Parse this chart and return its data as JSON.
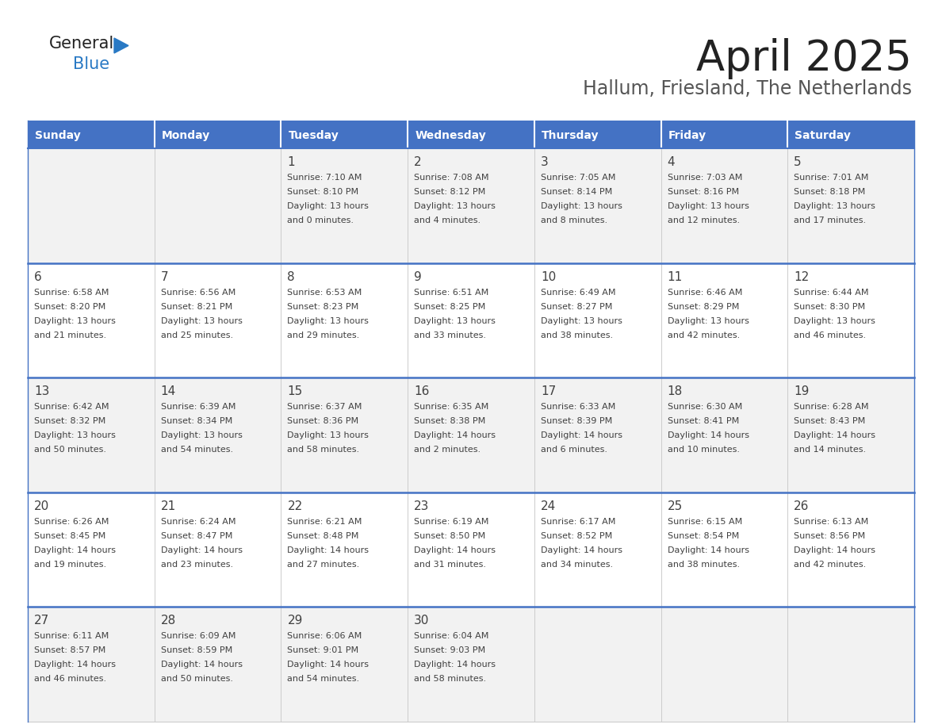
{
  "title": "April 2025",
  "subtitle": "Hallum, Friesland, The Netherlands",
  "days_of_week": [
    "Sunday",
    "Monday",
    "Tuesday",
    "Wednesday",
    "Thursday",
    "Friday",
    "Saturday"
  ],
  "header_bg": "#4472C4",
  "header_text": "#FFFFFF",
  "row_bg_odd": "#F2F2F2",
  "row_bg_even": "#FFFFFF",
  "border_color": "#3D5A8A",
  "separator_color": "#4472C4",
  "text_color": "#404040",
  "cell_border_color": "#CCCCCC",
  "calendar_data": [
    [
      {
        "day": "",
        "sunrise": "",
        "sunset": "",
        "daylight": ""
      },
      {
        "day": "",
        "sunrise": "",
        "sunset": "",
        "daylight": ""
      },
      {
        "day": "1",
        "sunrise": "7:10 AM",
        "sunset": "8:10 PM",
        "daylight": "13 hours and 0 minutes."
      },
      {
        "day": "2",
        "sunrise": "7:08 AM",
        "sunset": "8:12 PM",
        "daylight": "13 hours and 4 minutes."
      },
      {
        "day": "3",
        "sunrise": "7:05 AM",
        "sunset": "8:14 PM",
        "daylight": "13 hours and 8 minutes."
      },
      {
        "day": "4",
        "sunrise": "7:03 AM",
        "sunset": "8:16 PM",
        "daylight": "13 hours and 12 minutes."
      },
      {
        "day": "5",
        "sunrise": "7:01 AM",
        "sunset": "8:18 PM",
        "daylight": "13 hours and 17 minutes."
      }
    ],
    [
      {
        "day": "6",
        "sunrise": "6:58 AM",
        "sunset": "8:20 PM",
        "daylight": "13 hours and 21 minutes."
      },
      {
        "day": "7",
        "sunrise": "6:56 AM",
        "sunset": "8:21 PM",
        "daylight": "13 hours and 25 minutes."
      },
      {
        "day": "8",
        "sunrise": "6:53 AM",
        "sunset": "8:23 PM",
        "daylight": "13 hours and 29 minutes."
      },
      {
        "day": "9",
        "sunrise": "6:51 AM",
        "sunset": "8:25 PM",
        "daylight": "13 hours and 33 minutes."
      },
      {
        "day": "10",
        "sunrise": "6:49 AM",
        "sunset": "8:27 PM",
        "daylight": "13 hours and 38 minutes."
      },
      {
        "day": "11",
        "sunrise": "6:46 AM",
        "sunset": "8:29 PM",
        "daylight": "13 hours and 42 minutes."
      },
      {
        "day": "12",
        "sunrise": "6:44 AM",
        "sunset": "8:30 PM",
        "daylight": "13 hours and 46 minutes."
      }
    ],
    [
      {
        "day": "13",
        "sunrise": "6:42 AM",
        "sunset": "8:32 PM",
        "daylight": "13 hours and 50 minutes."
      },
      {
        "day": "14",
        "sunrise": "6:39 AM",
        "sunset": "8:34 PM",
        "daylight": "13 hours and 54 minutes."
      },
      {
        "day": "15",
        "sunrise": "6:37 AM",
        "sunset": "8:36 PM",
        "daylight": "13 hours and 58 minutes."
      },
      {
        "day": "16",
        "sunrise": "6:35 AM",
        "sunset": "8:38 PM",
        "daylight": "14 hours and 2 minutes."
      },
      {
        "day": "17",
        "sunrise": "6:33 AM",
        "sunset": "8:39 PM",
        "daylight": "14 hours and 6 minutes."
      },
      {
        "day": "18",
        "sunrise": "6:30 AM",
        "sunset": "8:41 PM",
        "daylight": "14 hours and 10 minutes."
      },
      {
        "day": "19",
        "sunrise": "6:28 AM",
        "sunset": "8:43 PM",
        "daylight": "14 hours and 14 minutes."
      }
    ],
    [
      {
        "day": "20",
        "sunrise": "6:26 AM",
        "sunset": "8:45 PM",
        "daylight": "14 hours and 19 minutes."
      },
      {
        "day": "21",
        "sunrise": "6:24 AM",
        "sunset": "8:47 PM",
        "daylight": "14 hours and 23 minutes."
      },
      {
        "day": "22",
        "sunrise": "6:21 AM",
        "sunset": "8:48 PM",
        "daylight": "14 hours and 27 minutes."
      },
      {
        "day": "23",
        "sunrise": "6:19 AM",
        "sunset": "8:50 PM",
        "daylight": "14 hours and 31 minutes."
      },
      {
        "day": "24",
        "sunrise": "6:17 AM",
        "sunset": "8:52 PM",
        "daylight": "14 hours and 34 minutes."
      },
      {
        "day": "25",
        "sunrise": "6:15 AM",
        "sunset": "8:54 PM",
        "daylight": "14 hours and 38 minutes."
      },
      {
        "day": "26",
        "sunrise": "6:13 AM",
        "sunset": "8:56 PM",
        "daylight": "14 hours and 42 minutes."
      }
    ],
    [
      {
        "day": "27",
        "sunrise": "6:11 AM",
        "sunset": "8:57 PM",
        "daylight": "14 hours and 46 minutes."
      },
      {
        "day": "28",
        "sunrise": "6:09 AM",
        "sunset": "8:59 PM",
        "daylight": "14 hours and 50 minutes."
      },
      {
        "day": "29",
        "sunrise": "6:06 AM",
        "sunset": "9:01 PM",
        "daylight": "14 hours and 54 minutes."
      },
      {
        "day": "30",
        "sunrise": "6:04 AM",
        "sunset": "9:03 PM",
        "daylight": "14 hours and 58 minutes."
      },
      {
        "day": "",
        "sunrise": "",
        "sunset": "",
        "daylight": ""
      },
      {
        "day": "",
        "sunrise": "",
        "sunset": "",
        "daylight": ""
      },
      {
        "day": "",
        "sunrise": "",
        "sunset": "",
        "daylight": ""
      }
    ]
  ],
  "logo_text_general": "General",
  "logo_text_blue": "Blue",
  "logo_color_general": "#222222",
  "logo_color_blue": "#2979C4",
  "logo_triangle_color": "#2979C4",
  "title_color": "#222222",
  "subtitle_color": "#555555",
  "title_fontsize": 38,
  "subtitle_fontsize": 17,
  "day_num_fontsize": 11,
  "cell_text_fontsize": 8,
  "header_fontsize": 10,
  "logo_fontsize": 15
}
